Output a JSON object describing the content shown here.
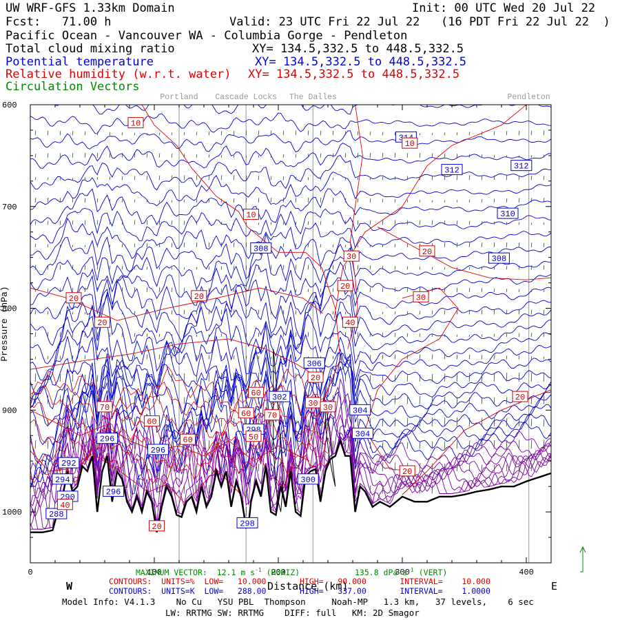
{
  "header": {
    "model_title": "UW WRF-GFS 1.33km Domain",
    "init": "Init: 00 UTC Wed 20 Jul 22",
    "fcst": "Fcst:   71.00 h",
    "valid": "Valid: 23 UTC Fri 22 Jul 22   (16 PDT Fri 22 Jul 22  )",
    "region": "Pacific Ocean - Vancouver WA - Columbia Gorge - Pendleton"
  },
  "fields": [
    {
      "name": "Total cloud mixing ratio",
      "xy": "XY= 134.5,332.5 to 448.5,332.5",
      "color": "#000000"
    },
    {
      "name": "Potential temperature",
      "xy": "XY= 134.5,332.5 to 448.5,332.5",
      "color": "#0000dd"
    },
    {
      "name": "Relative humidity (w.r.t. water)",
      "xy": "XY= 134.5,332.5 to 448.5,332.5",
      "color": "#dd0000"
    },
    {
      "name": "Circulation Vectors",
      "color": "#008800"
    }
  ],
  "chart_data": {
    "type": "line",
    "xlim": [
      0,
      420
    ],
    "ylim": [
      1050,
      600
    ],
    "x_ticks": [
      0,
      100,
      200,
      300,
      400
    ],
    "x_tick_labels": [
      "0",
      "100",
      "200",
      "300",
      "400"
    ],
    "y_ticks": [
      600,
      700,
      800,
      900,
      1000
    ],
    "y_tick_labels": [
      "600",
      "700",
      "800",
      "900",
      "1000"
    ],
    "xlabel": "Distance (km)",
    "ylabel": "Pressure (hPa)",
    "direction_labels": {
      "west": "W",
      "east": "E"
    },
    "locations": [
      {
        "name": "Portland",
        "x": 120
      },
      {
        "name": "Cascade Locks",
        "x": 174
      },
      {
        "name": "The Dalles",
        "x": 228
      },
      {
        "name": "Pendleton",
        "x": 402
      }
    ],
    "theta_labels": [
      {
        "text": "314",
        "x": 303,
        "p": 632
      },
      {
        "text": "312",
        "x": 340,
        "p": 664
      },
      {
        "text": "312",
        "x": 396,
        "p": 660
      },
      {
        "text": "310",
        "x": 385,
        "p": 707
      },
      {
        "text": "308",
        "x": 186,
        "p": 741
      },
      {
        "text": "308",
        "x": 378,
        "p": 751
      },
      {
        "text": "306",
        "x": 229,
        "p": 854
      },
      {
        "text": "304",
        "x": 266,
        "p": 900
      },
      {
        "text": "304",
        "x": 268,
        "p": 923
      },
      {
        "text": "302",
        "x": 201,
        "p": 887
      },
      {
        "text": "300",
        "x": 224,
        "p": 968
      },
      {
        "text": "298",
        "x": 180,
        "p": 919
      },
      {
        "text": "298",
        "x": 175,
        "p": 1011
      },
      {
        "text": "296",
        "x": 62,
        "p": 928
      },
      {
        "text": "296",
        "x": 103,
        "p": 939
      },
      {
        "text": "296",
        "x": 67,
        "p": 980
      },
      {
        "text": "294",
        "x": 26,
        "p": 968
      },
      {
        "text": "292",
        "x": 31,
        "p": 952
      },
      {
        "text": "290",
        "x": 30,
        "p": 985
      },
      {
        "text": "288",
        "x": 21,
        "p": 1002
      }
    ],
    "rh_labels": [
      {
        "text": "10",
        "x": 85,
        "p": 618
      },
      {
        "text": "10",
        "x": 306,
        "p": 638
      },
      {
        "text": "10",
        "x": 178,
        "p": 708
      },
      {
        "text": "30",
        "x": 259,
        "p": 749
      },
      {
        "text": "20",
        "x": 320,
        "p": 744
      },
      {
        "text": "20",
        "x": 254,
        "p": 778
      },
      {
        "text": "30",
        "x": 315,
        "p": 789
      },
      {
        "text": "20",
        "x": 35,
        "p": 790
      },
      {
        "text": "20",
        "x": 136,
        "p": 788
      },
      {
        "text": "20",
        "x": 58,
        "p": 814
      },
      {
        "text": "40",
        "x": 258,
        "p": 814
      },
      {
        "text": "20",
        "x": 230,
        "p": 868
      },
      {
        "text": "60",
        "x": 182,
        "p": 883
      },
      {
        "text": "30",
        "x": 228,
        "p": 893
      },
      {
        "text": "60",
        "x": 174,
        "p": 903
      },
      {
        "text": "30",
        "x": 240,
        "p": 897
      },
      {
        "text": "70",
        "x": 60,
        "p": 897
      },
      {
        "text": "70",
        "x": 195,
        "p": 905
      },
      {
        "text": "60",
        "x": 98,
        "p": 911
      },
      {
        "text": "20",
        "x": 395,
        "p": 887
      },
      {
        "text": "60",
        "x": 127,
        "p": 929
      },
      {
        "text": "50",
        "x": 180,
        "p": 926
      },
      {
        "text": "20",
        "x": 304,
        "p": 960
      },
      {
        "text": "40",
        "x": 28,
        "p": 993
      },
      {
        "text": "20",
        "x": 102,
        "p": 1014
      }
    ],
    "terrain": {
      "x": [
        0,
        10,
        18,
        22,
        26,
        30,
        34,
        38,
        42,
        46,
        50,
        54,
        58,
        62,
        66,
        70,
        74,
        78,
        82,
        86,
        90,
        94,
        98,
        102,
        106,
        110,
        114,
        118,
        122,
        126,
        130,
        134,
        138,
        142,
        146,
        150,
        154,
        158,
        162,
        166,
        170,
        174,
        176,
        178,
        182,
        186,
        190,
        194,
        198,
        202,
        206,
        210,
        214,
        218,
        222,
        226,
        230,
        234,
        238,
        242,
        246,
        250,
        254,
        258,
        262,
        266,
        270,
        276,
        282,
        290,
        300,
        310,
        320,
        330,
        340,
        350,
        360,
        370,
        380,
        390,
        400,
        410,
        420
      ],
      "p": [
        1020,
        1020,
        1018,
        1000,
        985,
        960,
        980,
        975,
        955,
        960,
        945,
        1000,
        960,
        945,
        990,
        960,
        968,
        990,
        1000,
        985,
        1000,
        980,
        990,
        1020,
        995,
        975,
        985,
        1003,
        1005,
        990,
        985,
        1000,
        975,
        995,
        985,
        960,
        975,
        960,
        995,
        970,
        985,
        1015,
        1012,
        990,
        970,
        985,
        955,
        1000,
        1003,
        975,
        995,
        960,
        1000,
        1004,
        965,
        960,
        958,
        990,
        960,
        948,
        945,
        930,
        945,
        945,
        1000,
        975,
        980,
        995,
        990,
        995,
        985,
        990,
        990,
        985,
        985,
        983,
        980,
        978,
        975,
        975,
        970,
        966,
        962
      ]
    },
    "cloud": [
      {
        "x": [
          196,
          198,
          200,
          202,
          204,
          202,
          199,
          196
        ],
        "p": [
          840,
          868,
          900,
          935,
          970,
          1000,
          985,
          940
        ]
      },
      {
        "x": [
          238,
          240,
          242,
          244,
          246,
          244,
          241,
          238
        ],
        "p": [
          890,
          910,
          930,
          955,
          975,
          965,
          945,
          915
        ]
      }
    ]
  },
  "footer": {
    "max_vector": "MAXIMUM VECTOR:  12.1 m s",
    "max_vector_units": "-1",
    "horiz": "(HORIZ)",
    "vert_value": "135.8 dPa s",
    "vert_units": "-1",
    "vert": "(VERT)",
    "contours_rh": "CONTOURS:  UNITS=%  LOW=   10.000       HIGH=   90.000       INTERVAL=    10.000",
    "contours_theta": "CONTOURS:  UNITS=K  LOW=   288.00       HIGH=   337.00       INTERVAL=    1.0000",
    "model_info": "Model Info: V4.1.3    No Cu   YSU PBL  Thompson     Noah-MP   1.3 km,   37 levels,    6 sec",
    "physics": "LW: RRTMG SW: RRTMG    DIFF: full   KM: 2D Smagor"
  }
}
